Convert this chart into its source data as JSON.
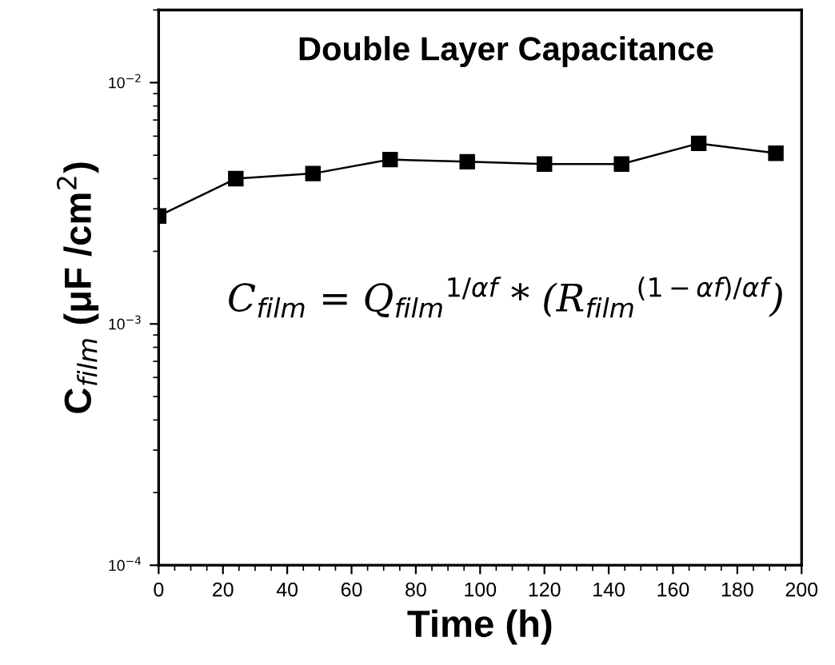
{
  "chart_data": {
    "type": "line",
    "title": "Double Layer Capacitance",
    "xlabel": "Time (h)",
    "ylabel": "C$_{film}$ (μF /cm$^{2}$)",
    "x": [
      0,
      24,
      48,
      72,
      96,
      120,
      144,
      168,
      192
    ],
    "series": [
      {
        "color": "#000000",
        "values": [
          0.0028,
          0.004,
          0.0042,
          0.0048,
          0.0047,
          0.0046,
          0.0046,
          0.0056,
          0.0051
        ]
      }
    ],
    "annotations": [
      "C$_{film}$ = Q$_{film}$$^{1/αf}$ * (R$_{film}$$^{(1−αf)/αf}$)"
    ],
    "log": "y",
    "xlim": [
      0,
      200
    ],
    "ylim": [
      0.0001,
      0.02
    ],
    "xticks": [
      0,
      20,
      40,
      60,
      80,
      100,
      120,
      140,
      160,
      180,
      200
    ],
    "yticks": [
      {
        "value": 0.0001,
        "label": "10$^{−4}$"
      },
      {
        "value": 0.001,
        "label": "10$^{−3}$"
      },
      {
        "value": 0.01,
        "label": "10$^{−2}$"
      }
    ],
    "marker": "square",
    "line_style": "solid",
    "grid": false,
    "legend": false
  }
}
